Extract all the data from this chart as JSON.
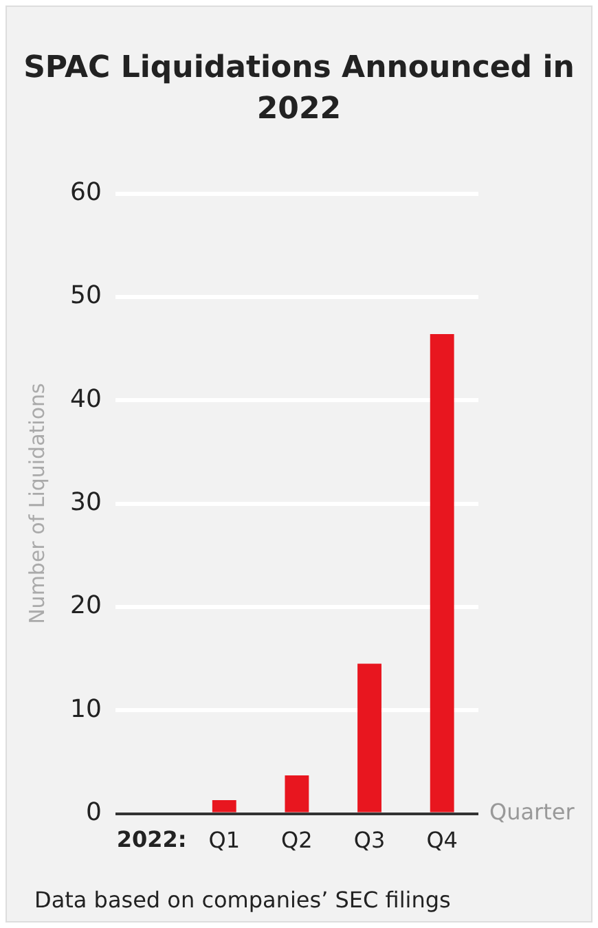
{
  "chart_data": {
    "type": "bar",
    "title": "SPAC Liquidations Announced in 2022",
    "xlabel": "Quarter",
    "ylabel": "Number of Liquidations",
    "categories": [
      null,
      "Q1",
      "Q2",
      "Q3",
      "Q4"
    ],
    "values": [
      null,
      1.3,
      3.7,
      14.5,
      46.4
    ],
    "color": "#e8161f",
    "ylim": [
      0,
      60
    ],
    "yticks": [
      0,
      10,
      20,
      30,
      40,
      50,
      60
    ],
    "grid": "y",
    "legend": false,
    "annotations": [
      "2022:",
      "Data based on companies’ SEC filings"
    ]
  }
}
